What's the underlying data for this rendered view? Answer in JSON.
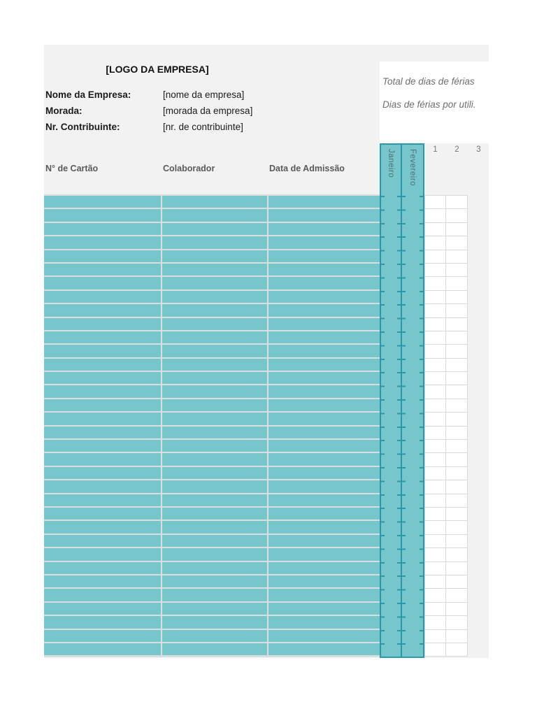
{
  "header": {
    "logo_placeholder": "[LOGO DA EMPRESA]",
    "fields": [
      {
        "label": "Nome da Empresa:",
        "value": "[nome da empresa]"
      },
      {
        "label": "Morada:",
        "value": "[morada da empresa]"
      },
      {
        "label": "Nr. Contribuinte:",
        "value": "[nr. de contribuinte]"
      }
    ]
  },
  "summary": {
    "lines": [
      "Total de dias de férias",
      "Dias de férias por utili."
    ]
  },
  "table": {
    "columns": [
      "N° de Cartão",
      "Colaborador",
      "Data de Admissão"
    ],
    "month_columns": [
      "Janeiro",
      "Fevereiro"
    ],
    "day_numbers": [
      "1",
      "2",
      "3"
    ],
    "day_cell_columns": 2,
    "row_count": 34
  },
  "colors": {
    "sheet_background": "#f2f2f2",
    "row_teal": "#77c6cc",
    "month_border_teal": "#2a98a6",
    "grid_border": "#d9d9d9",
    "header_text_gray": "#595959",
    "summary_text_gray": "#6e6e6e"
  }
}
